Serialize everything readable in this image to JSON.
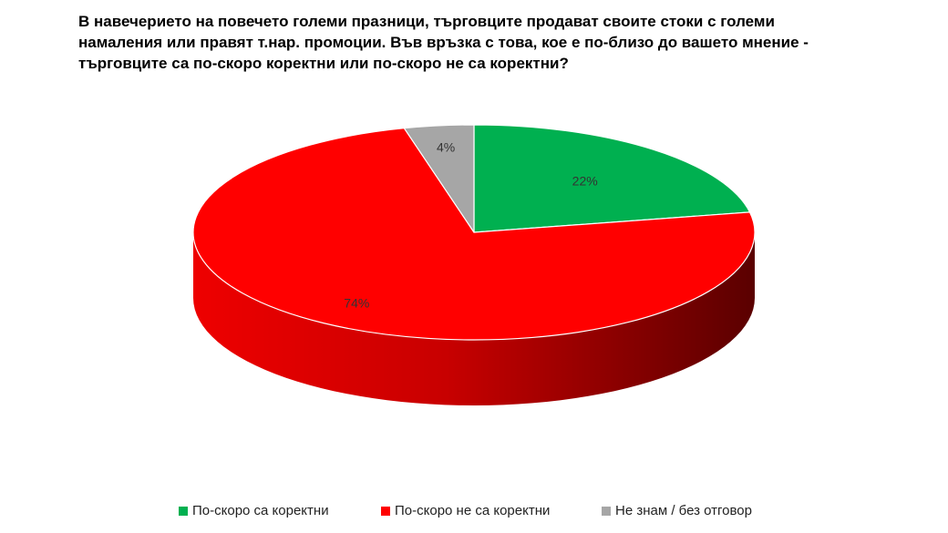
{
  "title_lines": [
    "В навечерието на повечето големи празници, търговците продават своите стоки с големи",
    "намаления или правят т.нар. промоции. Във връзка с това, кое е по-близо до вашето мнение -",
    "търговците са по-скоро коректни или по-скоро не са коректни?"
  ],
  "chart_data": {
    "type": "pie",
    "title": "В навечерието на повечето големи празници, търговците продават своите стоки с големи намаления или правят т.нар. промоции. Във връзка с това, кое е по-близо до вашето мнение - търговците са по-скоро коректни или по-скоро не са коректни?",
    "three_d": true,
    "legend_position": "bottom",
    "slices": [
      {
        "label": "По-скоро са коректни",
        "value": 22,
        "display": "22%",
        "color": "#00b050"
      },
      {
        "label": "По-скоро не са коректни",
        "value": 74,
        "display": "74%",
        "color": "#ff0000"
      },
      {
        "label": "Не знам / без отговор",
        "value": 4,
        "display": "4%",
        "color": "#a6a6a6"
      }
    ]
  }
}
